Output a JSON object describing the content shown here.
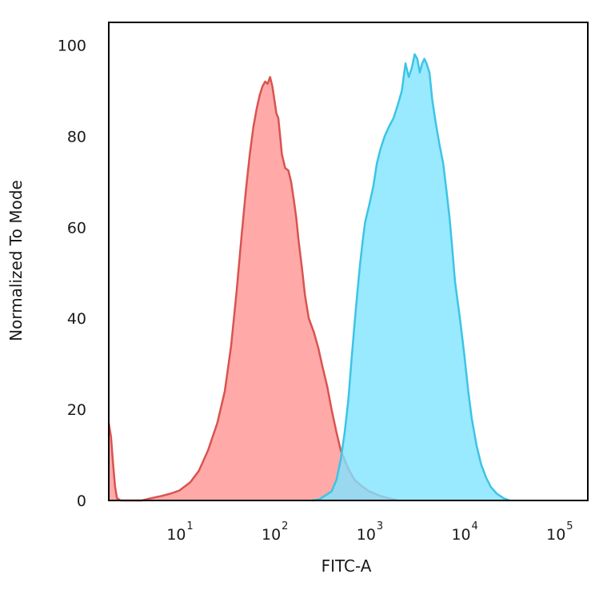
{
  "chart_data": {
    "type": "area",
    "title": "",
    "xlabel": "FITC-A",
    "ylabel": "Normalized To Mode",
    "x_scale": "log",
    "xlim": [
      1.8,
      200000
    ],
    "ylim": [
      0,
      105
    ],
    "grid": false,
    "x_ticks": [
      {
        "base": "10",
        "exp": "1",
        "value": 10
      },
      {
        "base": "10",
        "exp": "2",
        "value": 100
      },
      {
        "base": "10",
        "exp": "3",
        "value": 1000
      },
      {
        "base": "10",
        "exp": "4",
        "value": 10000
      },
      {
        "base": "10",
        "exp": "5",
        "value": 100000
      }
    ],
    "y_ticks": [
      {
        "label": "0",
        "value": 0
      },
      {
        "label": "20",
        "value": 20
      },
      {
        "label": "40",
        "value": 40
      },
      {
        "label": "60",
        "value": 60
      },
      {
        "label": "80",
        "value": 80
      },
      {
        "label": "100",
        "value": 100
      }
    ],
    "series": [
      {
        "stroke": "#d9534f",
        "fill": "#ff9a9a",
        "fill_opacity": 0.85,
        "points": [
          [
            1.8,
            17
          ],
          [
            1.9,
            14
          ],
          [
            2.0,
            8
          ],
          [
            2.1,
            3
          ],
          [
            2.2,
            0.5
          ],
          [
            2.4,
            0
          ],
          [
            4.0,
            0
          ],
          [
            5.0,
            0.5
          ],
          [
            6.5,
            1
          ],
          [
            8.0,
            1.5
          ],
          [
            10,
            2.2
          ],
          [
            13,
            4
          ],
          [
            16,
            6.5
          ],
          [
            20,
            11
          ],
          [
            25,
            17
          ],
          [
            30,
            24
          ],
          [
            35,
            34
          ],
          [
            40,
            46
          ],
          [
            45,
            58
          ],
          [
            50,
            68
          ],
          [
            55,
            76
          ],
          [
            60,
            82
          ],
          [
            65,
            86
          ],
          [
            70,
            89
          ],
          [
            75,
            91
          ],
          [
            80,
            92
          ],
          [
            85,
            91.5
          ],
          [
            90,
            93
          ],
          [
            95,
            91
          ],
          [
            100,
            88
          ],
          [
            105,
            85
          ],
          [
            110,
            84
          ],
          [
            115,
            80
          ],
          [
            120,
            76
          ],
          [
            130,
            73
          ],
          [
            140,
            72.5
          ],
          [
            150,
            70
          ],
          [
            160,
            66
          ],
          [
            170,
            62
          ],
          [
            180,
            57
          ],
          [
            195,
            51
          ],
          [
            210,
            45
          ],
          [
            230,
            40
          ],
          [
            260,
            37
          ],
          [
            290,
            33.5
          ],
          [
            320,
            29.5
          ],
          [
            360,
            25
          ],
          [
            400,
            20
          ],
          [
            450,
            15
          ],
          [
            500,
            11
          ],
          [
            600,
            7
          ],
          [
            700,
            4.5
          ],
          [
            850,
            3
          ],
          [
            1000,
            2
          ],
          [
            1300,
            1
          ],
          [
            1600,
            0.5
          ],
          [
            2000,
            0
          ]
        ]
      },
      {
        "stroke": "#3cc4e6",
        "fill": "#7fe3ff",
        "fill_opacity": 0.8,
        "points": [
          [
            250,
            0
          ],
          [
            300,
            0.3
          ],
          [
            400,
            2
          ],
          [
            450,
            4.5
          ],
          [
            500,
            9
          ],
          [
            550,
            15
          ],
          [
            600,
            22
          ],
          [
            650,
            31
          ],
          [
            700,
            39
          ],
          [
            750,
            46
          ],
          [
            800,
            52
          ],
          [
            850,
            57
          ],
          [
            900,
            61
          ],
          [
            1000,
            65
          ],
          [
            1100,
            69
          ],
          [
            1200,
            74
          ],
          [
            1300,
            77
          ],
          [
            1450,
            80
          ],
          [
            1600,
            82
          ],
          [
            1800,
            84
          ],
          [
            2000,
            87
          ],
          [
            2200,
            90
          ],
          [
            2400,
            96
          ],
          [
            2600,
            93
          ],
          [
            2800,
            95
          ],
          [
            3000,
            98
          ],
          [
            3200,
            97
          ],
          [
            3400,
            94
          ],
          [
            3600,
            96
          ],
          [
            3800,
            97
          ],
          [
            4000,
            96
          ],
          [
            4300,
            94
          ],
          [
            4600,
            88
          ],
          [
            5000,
            83
          ],
          [
            5500,
            78
          ],
          [
            6000,
            74
          ],
          [
            6500,
            68
          ],
          [
            7000,
            62
          ],
          [
            7500,
            55
          ],
          [
            8000,
            48
          ],
          [
            9000,
            40
          ],
          [
            10000,
            32
          ],
          [
            11000,
            24
          ],
          [
            12000,
            18
          ],
          [
            13500,
            12
          ],
          [
            15000,
            8
          ],
          [
            17000,
            5
          ],
          [
            19000,
            3
          ],
          [
            22000,
            1.5
          ],
          [
            26000,
            0.5
          ],
          [
            30000,
            0
          ]
        ]
      }
    ]
  }
}
